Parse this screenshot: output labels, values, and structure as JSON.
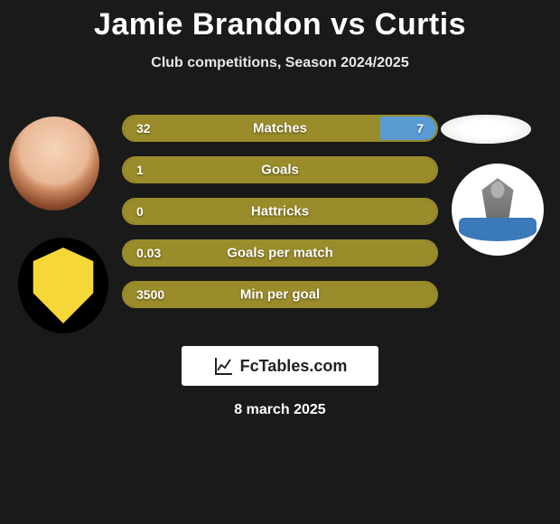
{
  "title": "Jamie Brandon vs Curtis",
  "subtitle": "Club competitions, Season 2024/2025",
  "colors": {
    "left_bar": "#9a8c2a",
    "right_bar": "#5a9bd4",
    "bar_border": "#9a8c2a",
    "background": "#1a1a1a",
    "badge_bg": "#ffffff",
    "text": "#ffffff"
  },
  "bars": [
    {
      "label": "Matches",
      "left_value": "32",
      "right_value": "7",
      "left_pct": 82,
      "right_pct": 18
    },
    {
      "label": "Goals",
      "left_value": "1",
      "right_value": "",
      "left_pct": 100,
      "right_pct": 0
    },
    {
      "label": "Hattricks",
      "left_value": "0",
      "right_value": "",
      "left_pct": 100,
      "right_pct": 0
    },
    {
      "label": "Goals per match",
      "left_value": "0.03",
      "right_value": "",
      "left_pct": 100,
      "right_pct": 0
    },
    {
      "label": "Min per goal",
      "left_value": "3500",
      "right_value": "",
      "left_pct": 100,
      "right_pct": 0
    }
  ],
  "footer": {
    "brand": "FcTables.com"
  },
  "date": "8 march 2025",
  "players": {
    "left_name": "Jamie Brandon",
    "right_name": "Curtis"
  },
  "clubs": {
    "left_name": "Livingston",
    "right_name": "St Johnstone"
  }
}
